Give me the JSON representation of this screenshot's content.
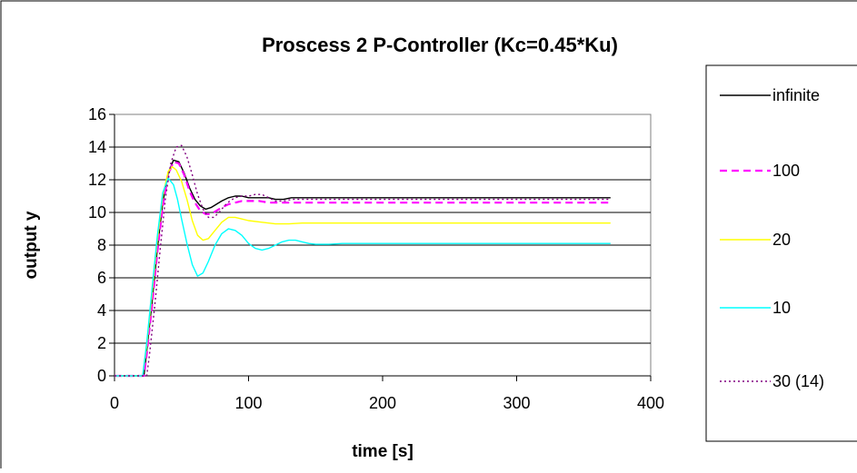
{
  "chart_data": {
    "type": "line",
    "title": "Proscess 2 P-Controller (Kc=0.45*Ku)",
    "xlabel": "time [s]",
    "ylabel": "output y",
    "xlim": [
      0,
      400
    ],
    "ylim": [
      0,
      16
    ],
    "xticks": [
      0,
      100,
      200,
      300,
      400
    ],
    "yticks": [
      0,
      2,
      4,
      6,
      8,
      10,
      12,
      14,
      16
    ],
    "grid": "horizontal",
    "legend": "right",
    "series": [
      {
        "name": "infinite",
        "color": "#000000",
        "style": "solid",
        "x": [
          0,
          22,
          24,
          28,
          32,
          36,
          40,
          44,
          48,
          52,
          56,
          60,
          64,
          68,
          72,
          76,
          80,
          85,
          90,
          95,
          100,
          108,
          115,
          120,
          126,
          132,
          138,
          145,
          370
        ],
        "y": [
          0,
          0,
          1.5,
          4.5,
          7.8,
          10.6,
          12.4,
          13.2,
          13.1,
          12.4,
          11.5,
          10.8,
          10.4,
          10.2,
          10.3,
          10.5,
          10.7,
          10.9,
          11.0,
          11.0,
          10.9,
          10.9,
          10.9,
          10.8,
          10.8,
          10.9,
          10.9,
          10.9,
          10.9
        ]
      },
      {
        "name": "100",
        "color": "#ff00ff",
        "style": "dashed",
        "x": [
          0,
          22,
          24,
          28,
          32,
          36,
          40,
          44,
          48,
          52,
          56,
          60,
          64,
          68,
          72,
          76,
          80,
          85,
          90,
          95,
          100,
          108,
          115,
          122,
          128,
          134,
          140,
          370
        ],
        "y": [
          0,
          0,
          1.3,
          4.3,
          7.6,
          10.4,
          12.3,
          13.1,
          13.0,
          12.3,
          11.3,
          10.6,
          10.1,
          9.9,
          9.9,
          10.1,
          10.3,
          10.5,
          10.6,
          10.7,
          10.7,
          10.7,
          10.6,
          10.6,
          10.6,
          10.6,
          10.6,
          10.6
        ]
      },
      {
        "name": "20",
        "color": "#ffff00",
        "style": "solid",
        "x": [
          0,
          21,
          24,
          28,
          32,
          36,
          40,
          43,
          46,
          50,
          54,
          58,
          62,
          66,
          70,
          75,
          80,
          85,
          90,
          95,
          100,
          110,
          120,
          130,
          140,
          370
        ],
        "y": [
          0,
          0,
          1.8,
          5.0,
          8.3,
          11.0,
          12.5,
          12.8,
          12.6,
          11.9,
          10.8,
          9.5,
          8.6,
          8.3,
          8.4,
          8.9,
          9.4,
          9.7,
          9.7,
          9.6,
          9.5,
          9.4,
          9.3,
          9.3,
          9.35,
          9.35
        ]
      },
      {
        "name": "10",
        "color": "#00ffff",
        "style": "solid",
        "x": [
          0,
          21,
          24,
          28,
          32,
          36,
          40,
          44,
          47,
          50,
          54,
          58,
          62,
          66,
          70,
          75,
          80,
          85,
          90,
          95,
          100,
          105,
          110,
          115,
          120,
          125,
          130,
          135,
          140,
          145,
          150,
          160,
          170,
          370
        ],
        "y": [
          0,
          0,
          2.0,
          5.3,
          8.6,
          11.2,
          12.1,
          11.7,
          10.8,
          9.6,
          8.1,
          6.8,
          6.1,
          6.3,
          7.0,
          8.0,
          8.7,
          9.0,
          8.9,
          8.6,
          8.1,
          7.8,
          7.7,
          7.8,
          8.0,
          8.2,
          8.3,
          8.3,
          8.2,
          8.1,
          8.05,
          8.05,
          8.1,
          8.1
        ]
      },
      {
        "name": "30 (14)",
        "color": "#800080",
        "style": "dotted",
        "x": [
          0,
          24,
          26,
          30,
          34,
          38,
          42,
          46,
          50,
          54,
          58,
          62,
          66,
          70,
          74,
          78,
          82,
          86,
          90,
          95,
          100,
          105,
          110,
          115,
          120,
          126,
          132,
          138,
          145,
          370
        ],
        "y": [
          0,
          0,
          1.2,
          4.3,
          7.7,
          10.9,
          13.0,
          14.0,
          14.1,
          13.4,
          12.3,
          11.1,
          10.2,
          9.7,
          9.7,
          10.0,
          10.4,
          10.7,
          10.9,
          11.0,
          11.0,
          11.1,
          11.1,
          10.9,
          10.7,
          10.7,
          10.8,
          10.8,
          10.8,
          10.8
        ]
      }
    ]
  }
}
